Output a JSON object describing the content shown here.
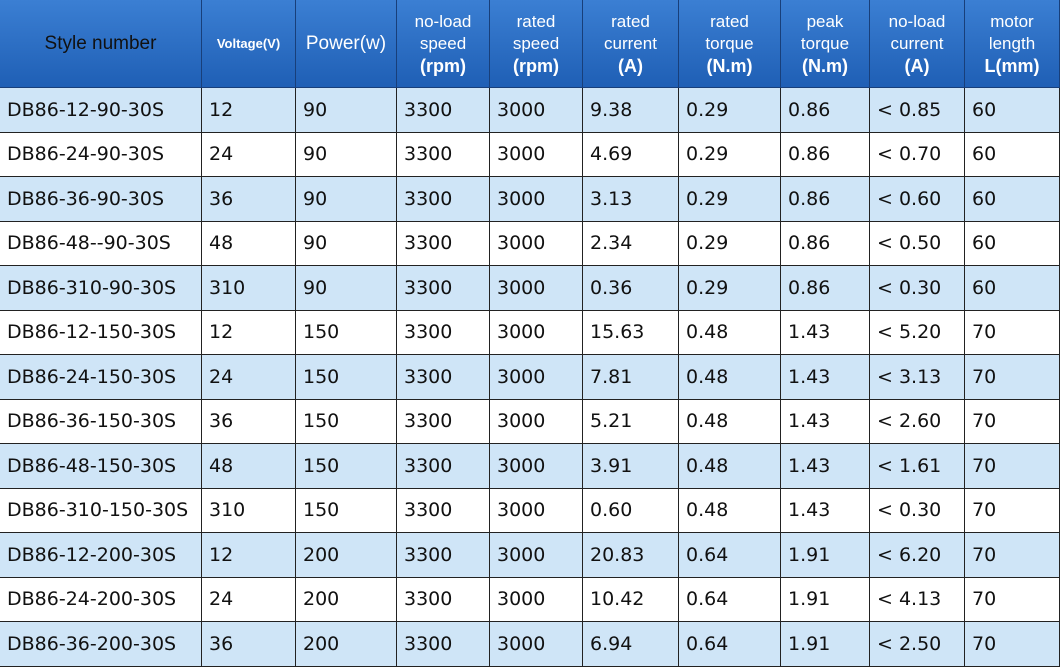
{
  "table": {
    "header": [
      [
        "Style number"
      ],
      [
        "Voltage(V)"
      ],
      [
        "Power(w)"
      ],
      [
        "no-load",
        "speed",
        "(rpm)"
      ],
      [
        "rated",
        "speed",
        "(rpm)"
      ],
      [
        "rated",
        "current",
        "(A)"
      ],
      [
        "rated",
        "torque",
        "(N.m)"
      ],
      [
        "peak",
        "torque",
        "(N.m)"
      ],
      [
        "no-load",
        "current",
        "(A)"
      ],
      [
        "motor",
        "length",
        "L(mm)"
      ]
    ],
    "rows": [
      [
        "DB86-12-90-30S",
        "12",
        "90",
        "3300",
        "3000",
        "9.38",
        "0.29",
        "0.86",
        "< 0.85",
        "60"
      ],
      [
        "DB86-24-90-30S",
        "24",
        "90",
        "3300",
        "3000",
        "4.69",
        "0.29",
        "0.86",
        "< 0.70",
        "60"
      ],
      [
        "DB86-36-90-30S",
        "36",
        "90",
        "3300",
        "3000",
        "3.13",
        "0.29",
        "0.86",
        "< 0.60",
        "60"
      ],
      [
        "DB86-48--90-30S",
        "48",
        "90",
        "3300",
        "3000",
        "2.34",
        "0.29",
        "0.86",
        "< 0.50",
        "60"
      ],
      [
        "DB86-310-90-30S",
        "310",
        "90",
        "3300",
        "3000",
        "0.36",
        "0.29",
        "0.86",
        "< 0.30",
        "60"
      ],
      [
        "DB86-12-150-30S",
        "12",
        "150",
        "3300",
        "3000",
        "15.63",
        "0.48",
        "1.43",
        "< 5.20",
        "70"
      ],
      [
        "DB86-24-150-30S",
        "24",
        "150",
        "3300",
        "3000",
        "7.81",
        "0.48",
        "1.43",
        "< 3.13",
        "70"
      ],
      [
        "DB86-36-150-30S",
        "36",
        "150",
        "3300",
        "3000",
        "5.21",
        "0.48",
        "1.43",
        "< 2.60",
        "70"
      ],
      [
        "DB86-48-150-30S",
        "48",
        "150",
        "3300",
        "3000",
        "3.91",
        "0.48",
        "1.43",
        "< 1.61",
        "70"
      ],
      [
        "DB86-310-150-30S",
        "310",
        "150",
        "3300",
        "3000",
        "0.60",
        "0.48",
        "1.43",
        "< 0.30",
        "70"
      ],
      [
        "DB86-12-200-30S",
        "12",
        "200",
        "3300",
        "3000",
        "20.83",
        "0.64",
        "1.91",
        "< 6.20",
        "70"
      ],
      [
        "DB86-24-200-30S",
        "24",
        "200",
        "3300",
        "3000",
        "10.42",
        "0.64",
        "1.91",
        "< 4.13",
        "70"
      ],
      [
        "DB86-36-200-30S",
        "36",
        "200",
        "3300",
        "3000",
        "6.94",
        "0.64",
        "1.91",
        "< 2.50",
        "70"
      ]
    ]
  }
}
